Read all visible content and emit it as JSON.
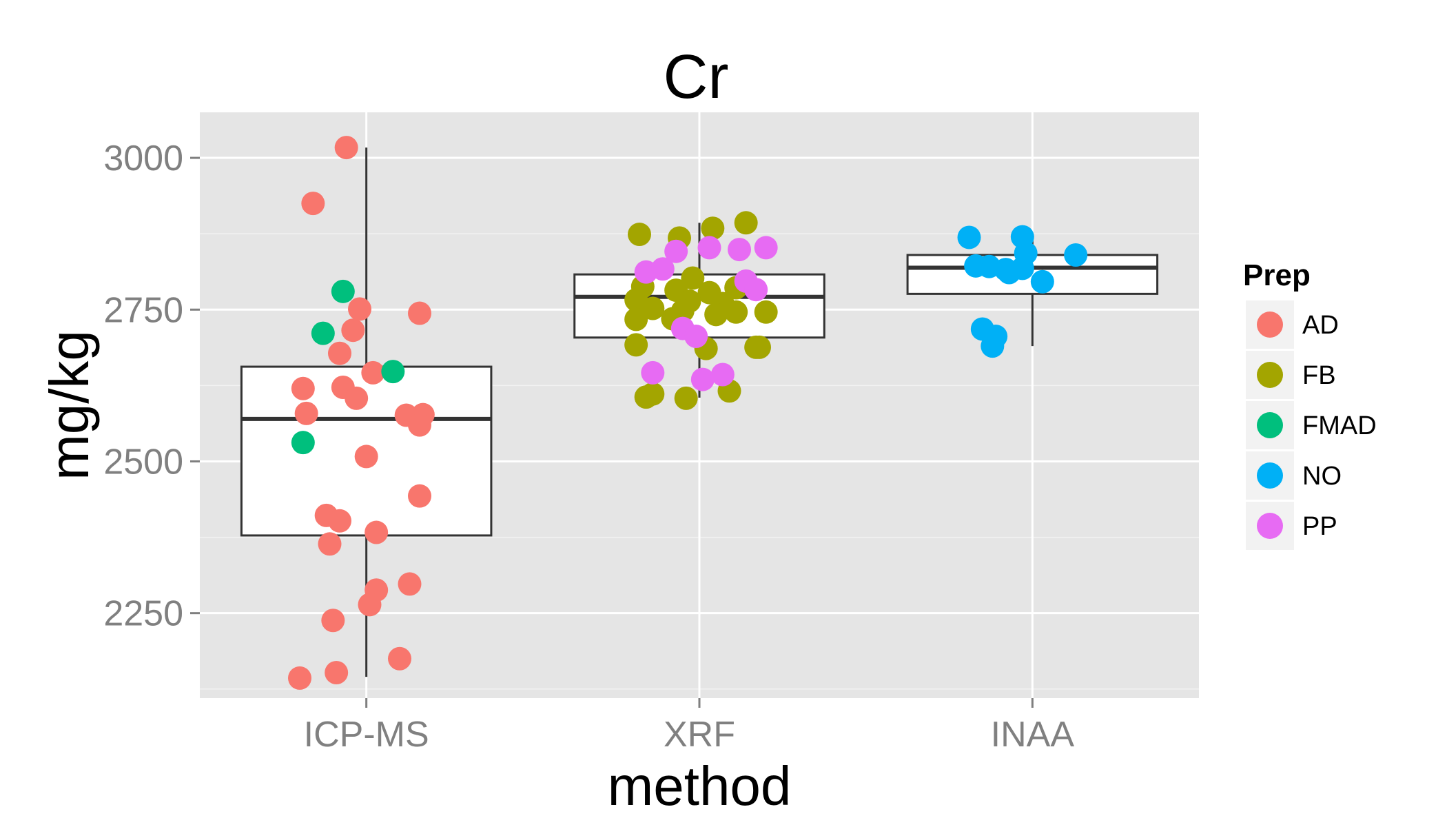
{
  "chart_data": {
    "type": "boxplot",
    "title": "Cr",
    "xlabel": "method",
    "ylabel": "mg/kg",
    "categories": [
      "ICP-MS",
      "XRF",
      "INAA"
    ],
    "ylim": [
      2110,
      3075
    ],
    "yticks": [
      2250,
      2500,
      2750,
      3000
    ],
    "grid": true,
    "legend": {
      "title": "Prep",
      "placement": "right",
      "entries": [
        {
          "label": "AD",
          "color": "#F8766D"
        },
        {
          "label": "FB",
          "color": "#A3A500"
        },
        {
          "label": "FMAD",
          "color": "#00BF7D"
        },
        {
          "label": "NO",
          "color": "#00B0F6"
        },
        {
          "label": "PP",
          "color": "#E76BF3"
        }
      ]
    },
    "boxes": [
      {
        "category": "ICP-MS",
        "whisker_low": 2145,
        "q1": 2378,
        "median": 2570,
        "q3": 2656,
        "whisker_high": 3017
      },
      {
        "category": "XRF",
        "whisker_low": 2605,
        "q1": 2704,
        "median": 2771,
        "q3": 2808,
        "whisker_high": 2893
      },
      {
        "category": "INAA",
        "whisker_low": 2690,
        "q1": 2776,
        "median": 2819,
        "q3": 2840,
        "whisker_high": 2869
      }
    ],
    "points": [
      {
        "category": "ICP-MS",
        "prep": "AD",
        "offset": -0.06,
        "y": 3017
      },
      {
        "category": "ICP-MS",
        "prep": "AD",
        "offset": -0.16,
        "y": 2925
      },
      {
        "category": "ICP-MS",
        "prep": "AD",
        "offset": -0.02,
        "y": 2751
      },
      {
        "category": "ICP-MS",
        "prep": "AD",
        "offset": -0.04,
        "y": 2716
      },
      {
        "category": "ICP-MS",
        "prep": "AD",
        "offset": 0.16,
        "y": 2744
      },
      {
        "category": "ICP-MS",
        "prep": "AD",
        "offset": -0.08,
        "y": 2678
      },
      {
        "category": "ICP-MS",
        "prep": "AD",
        "offset": 0.02,
        "y": 2646
      },
      {
        "category": "ICP-MS",
        "prep": "AD",
        "offset": -0.19,
        "y": 2620
      },
      {
        "category": "ICP-MS",
        "prep": "AD",
        "offset": -0.07,
        "y": 2622
      },
      {
        "category": "ICP-MS",
        "prep": "AD",
        "offset": -0.03,
        "y": 2604
      },
      {
        "category": "ICP-MS",
        "prep": "AD",
        "offset": -0.18,
        "y": 2579
      },
      {
        "category": "ICP-MS",
        "prep": "AD",
        "offset": 0.12,
        "y": 2576
      },
      {
        "category": "ICP-MS",
        "prep": "AD",
        "offset": 0.17,
        "y": 2577
      },
      {
        "category": "ICP-MS",
        "prep": "AD",
        "offset": 0.16,
        "y": 2560
      },
      {
        "category": "ICP-MS",
        "prep": "AD",
        "offset": 0.0,
        "y": 2508
      },
      {
        "category": "ICP-MS",
        "prep": "AD",
        "offset": 0.16,
        "y": 2443
      },
      {
        "category": "ICP-MS",
        "prep": "AD",
        "offset": -0.12,
        "y": 2411
      },
      {
        "category": "ICP-MS",
        "prep": "AD",
        "offset": -0.08,
        "y": 2402
      },
      {
        "category": "ICP-MS",
        "prep": "AD",
        "offset": 0.03,
        "y": 2383
      },
      {
        "category": "ICP-MS",
        "prep": "AD",
        "offset": -0.11,
        "y": 2364
      },
      {
        "category": "ICP-MS",
        "prep": "AD",
        "offset": 0.13,
        "y": 2298
      },
      {
        "category": "ICP-MS",
        "prep": "AD",
        "offset": 0.03,
        "y": 2288
      },
      {
        "category": "ICP-MS",
        "prep": "AD",
        "offset": 0.01,
        "y": 2264
      },
      {
        "category": "ICP-MS",
        "prep": "AD",
        "offset": -0.1,
        "y": 2238
      },
      {
        "category": "ICP-MS",
        "prep": "AD",
        "offset": 0.1,
        "y": 2175
      },
      {
        "category": "ICP-MS",
        "prep": "AD",
        "offset": -0.09,
        "y": 2152
      },
      {
        "category": "ICP-MS",
        "prep": "AD",
        "offset": -0.2,
        "y": 2143
      },
      {
        "category": "ICP-MS",
        "prep": "FMAD",
        "offset": -0.07,
        "y": 2780
      },
      {
        "category": "ICP-MS",
        "prep": "FMAD",
        "offset": -0.13,
        "y": 2711
      },
      {
        "category": "ICP-MS",
        "prep": "FMAD",
        "offset": 0.08,
        "y": 2648
      },
      {
        "category": "ICP-MS",
        "prep": "FMAD",
        "offset": -0.19,
        "y": 2531
      },
      {
        "category": "XRF",
        "prep": "FB",
        "offset": -0.18,
        "y": 2874
      },
      {
        "category": "XRF",
        "prep": "FB",
        "offset": -0.06,
        "y": 2868
      },
      {
        "category": "XRF",
        "prep": "FB",
        "offset": 0.04,
        "y": 2884
      },
      {
        "category": "XRF",
        "prep": "FB",
        "offset": 0.14,
        "y": 2893
      },
      {
        "category": "XRF",
        "prep": "FB",
        "offset": -0.02,
        "y": 2802
      },
      {
        "category": "XRF",
        "prep": "FB",
        "offset": -0.17,
        "y": 2788
      },
      {
        "category": "XRF",
        "prep": "FB",
        "offset": -0.07,
        "y": 2782
      },
      {
        "category": "XRF",
        "prep": "FB",
        "offset": 0.03,
        "y": 2778
      },
      {
        "category": "XRF",
        "prep": "FB",
        "offset": 0.11,
        "y": 2786
      },
      {
        "category": "XRF",
        "prep": "FB",
        "offset": -0.19,
        "y": 2766
      },
      {
        "category": "XRF",
        "prep": "FB",
        "offset": -0.03,
        "y": 2764
      },
      {
        "category": "XRF",
        "prep": "FB",
        "offset": 0.07,
        "y": 2760
      },
      {
        "category": "XRF",
        "prep": "FB",
        "offset": -0.14,
        "y": 2752
      },
      {
        "category": "XRF",
        "prep": "FB",
        "offset": -0.05,
        "y": 2748
      },
      {
        "category": "XRF",
        "prep": "FB",
        "offset": 0.05,
        "y": 2742
      },
      {
        "category": "XRF",
        "prep": "FB",
        "offset": 0.11,
        "y": 2746
      },
      {
        "category": "XRF",
        "prep": "FB",
        "offset": 0.2,
        "y": 2746
      },
      {
        "category": "XRF",
        "prep": "FB",
        "offset": -0.19,
        "y": 2734
      },
      {
        "category": "XRF",
        "prep": "FB",
        "offset": -0.08,
        "y": 2735
      },
      {
        "category": "XRF",
        "prep": "FB",
        "offset": -0.19,
        "y": 2692
      },
      {
        "category": "XRF",
        "prep": "FB",
        "offset": 0.02,
        "y": 2686
      },
      {
        "category": "XRF",
        "prep": "FB",
        "offset": 0.17,
        "y": 2688
      },
      {
        "category": "XRF",
        "prep": "FB",
        "offset": 0.18,
        "y": 2688
      },
      {
        "category": "XRF",
        "prep": "FB",
        "offset": -0.16,
        "y": 2606
      },
      {
        "category": "XRF",
        "prep": "FB",
        "offset": -0.14,
        "y": 2611
      },
      {
        "category": "XRF",
        "prep": "FB",
        "offset": -0.04,
        "y": 2604
      },
      {
        "category": "XRF",
        "prep": "FB",
        "offset": 0.09,
        "y": 2616
      },
      {
        "category": "XRF",
        "prep": "PP",
        "offset": -0.16,
        "y": 2812
      },
      {
        "category": "XRF",
        "prep": "PP",
        "offset": -0.11,
        "y": 2817
      },
      {
        "category": "XRF",
        "prep": "PP",
        "offset": -0.07,
        "y": 2846
      },
      {
        "category": "XRF",
        "prep": "PP",
        "offset": 0.03,
        "y": 2852
      },
      {
        "category": "XRF",
        "prep": "PP",
        "offset": 0.12,
        "y": 2849
      },
      {
        "category": "XRF",
        "prep": "PP",
        "offset": 0.2,
        "y": 2852
      },
      {
        "category": "XRF",
        "prep": "PP",
        "offset": 0.14,
        "y": 2797
      },
      {
        "category": "XRF",
        "prep": "PP",
        "offset": 0.17,
        "y": 2783
      },
      {
        "category": "XRF",
        "prep": "PP",
        "offset": -0.05,
        "y": 2719
      },
      {
        "category": "XRF",
        "prep": "PP",
        "offset": -0.01,
        "y": 2706
      },
      {
        "category": "XRF",
        "prep": "PP",
        "offset": -0.14,
        "y": 2646
      },
      {
        "category": "XRF",
        "prep": "PP",
        "offset": 0.01,
        "y": 2635
      },
      {
        "category": "XRF",
        "prep": "PP",
        "offset": 0.07,
        "y": 2643
      },
      {
        "category": "INAA",
        "prep": "NO",
        "offset": -0.19,
        "y": 2869
      },
      {
        "category": "INAA",
        "prep": "NO",
        "offset": -0.03,
        "y": 2870
      },
      {
        "category": "INAA",
        "prep": "NO",
        "offset": -0.02,
        "y": 2843
      },
      {
        "category": "INAA",
        "prep": "NO",
        "offset": 0.13,
        "y": 2840
      },
      {
        "category": "INAA",
        "prep": "NO",
        "offset": -0.17,
        "y": 2822
      },
      {
        "category": "INAA",
        "prep": "NO",
        "offset": -0.13,
        "y": 2821
      },
      {
        "category": "INAA",
        "prep": "NO",
        "offset": -0.08,
        "y": 2816
      },
      {
        "category": "INAA",
        "prep": "NO",
        "offset": -0.07,
        "y": 2811
      },
      {
        "category": "INAA",
        "prep": "NO",
        "offset": -0.03,
        "y": 2818
      },
      {
        "category": "INAA",
        "prep": "NO",
        "offset": 0.03,
        "y": 2796
      },
      {
        "category": "INAA",
        "prep": "NO",
        "offset": -0.15,
        "y": 2718
      },
      {
        "category": "INAA",
        "prep": "NO",
        "offset": -0.11,
        "y": 2706
      },
      {
        "category": "INAA",
        "prep": "NO",
        "offset": -0.12,
        "y": 2690
      }
    ]
  }
}
